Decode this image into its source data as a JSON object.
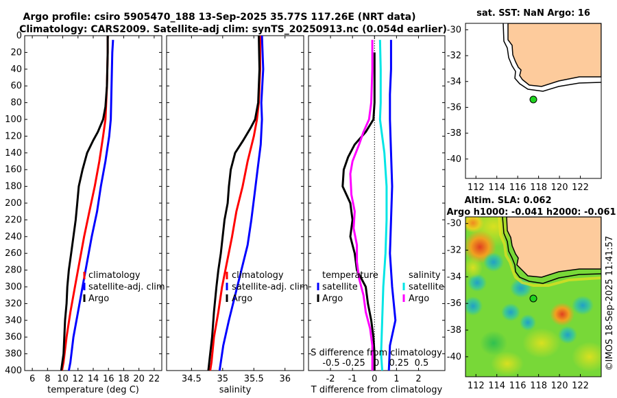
{
  "header": {
    "line1": "Argo profile: csiro 5905470_188 13-Sep-2025 35.77S 117.26E (NRT data)",
    "line2": "Climatology: CARS2009. Satellite-adj clim: synTS_20250913.nc (0.054d earlier)"
  },
  "footer": {
    "stamp": "©IMOS 18-Sep-2025 11:41:57"
  },
  "colors": {
    "argo": "#000000",
    "climatology": "#ff0000",
    "satellite": "#0000ff",
    "sal_diff": "#00e5e5",
    "temp_diff": "#ff00ff",
    "land": "#fdcb9c",
    "argo_dot": "#1fd21f"
  },
  "chart_data": [
    {
      "id": "temperature",
      "type": "line",
      "xlabel": "temperature (deg C)",
      "ylabel": "",
      "xlim": [
        5,
        23
      ],
      "ylim": [
        400,
        0
      ],
      "xticks": [
        6,
        8,
        10,
        12,
        14,
        16,
        18,
        20,
        22
      ],
      "yticks": [
        0,
        20,
        40,
        60,
        80,
        100,
        120,
        140,
        160,
        180,
        200,
        220,
        240,
        260,
        280,
        300,
        320,
        340,
        360,
        380,
        400
      ],
      "legend": [
        "climatology",
        "satellite-adj. clim",
        "Argo"
      ],
      "series": [
        {
          "name": "climatology",
          "color": "red",
          "points": [
            [
              15.9,
              0
            ],
            [
              15.9,
              20
            ],
            [
              15.8,
              60
            ],
            [
              15.6,
              100
            ],
            [
              15.3,
              120
            ],
            [
              14.8,
              150
            ],
            [
              14.2,
              180
            ],
            [
              13.5,
              210
            ],
            [
              12.8,
              240
            ],
            [
              12.2,
              270
            ],
            [
              11.6,
              300
            ],
            [
              11.0,
              330
            ],
            [
              10.5,
              360
            ],
            [
              10.1,
              390
            ],
            [
              9.9,
              400
            ]
          ]
        },
        {
          "name": "satellite-adj. clim",
          "color": "blue",
          "points": [
            [
              16.6,
              5
            ],
            [
              16.5,
              20
            ],
            [
              16.4,
              60
            ],
            [
              16.3,
              100
            ],
            [
              16.1,
              120
            ],
            [
              15.6,
              150
            ],
            [
              15.0,
              180
            ],
            [
              14.5,
              210
            ],
            [
              13.8,
              240
            ],
            [
              13.2,
              270
            ],
            [
              12.6,
              300
            ],
            [
              12.0,
              330
            ],
            [
              11.4,
              360
            ],
            [
              11.0,
              390
            ],
            [
              10.8,
              400
            ]
          ]
        },
        {
          "name": "Argo",
          "color": "black",
          "points": [
            [
              15.9,
              0
            ],
            [
              15.9,
              20
            ],
            [
              15.8,
              60
            ],
            [
              15.6,
              85
            ],
            [
              15.3,
              100
            ],
            [
              14.6,
              115
            ],
            [
              14.0,
              125
            ],
            [
              13.2,
              140
            ],
            [
              12.6,
              160
            ],
            [
              12.1,
              180
            ],
            [
              11.9,
              200
            ],
            [
              11.7,
              220
            ],
            [
              11.4,
              240
            ],
            [
              11.1,
              260
            ],
            [
              10.8,
              280
            ],
            [
              10.6,
              300
            ],
            [
              10.5,
              320
            ],
            [
              10.3,
              340
            ],
            [
              10.2,
              360
            ],
            [
              10.1,
              380
            ],
            [
              9.8,
              400
            ]
          ]
        }
      ]
    },
    {
      "id": "salinity",
      "type": "line",
      "xlabel": "salinity",
      "ylabel": "",
      "xlim": [
        34.1,
        36.3
      ],
      "ylim": [
        400,
        0
      ],
      "xticks": [
        34.5,
        35,
        35.5,
        36
      ],
      "legend": [
        "climatology",
        "satellite-adj. clim",
        "Argo"
      ],
      "series": [
        {
          "name": "climatology",
          "color": "red",
          "points": [
            [
              35.6,
              0
            ],
            [
              35.6,
              40
            ],
            [
              35.58,
              80
            ],
            [
              35.55,
              100
            ],
            [
              35.5,
              120
            ],
            [
              35.4,
              150
            ],
            [
              35.32,
              180
            ],
            [
              35.22,
              210
            ],
            [
              35.15,
              240
            ],
            [
              35.07,
              270
            ],
            [
              34.99,
              300
            ],
            [
              34.93,
              330
            ],
            [
              34.86,
              360
            ],
            [
              34.82,
              390
            ],
            [
              34.8,
              400
            ]
          ]
        },
        {
          "name": "satellite-adj. clim",
          "color": "blue",
          "points": [
            [
              35.63,
              0
            ],
            [
              35.65,
              40
            ],
            [
              35.62,
              80
            ],
            [
              35.63,
              100
            ],
            [
              35.61,
              130
            ],
            [
              35.56,
              160
            ],
            [
              35.51,
              190
            ],
            [
              35.46,
              220
            ],
            [
              35.4,
              250
            ],
            [
              35.3,
              280
            ],
            [
              35.2,
              310
            ],
            [
              35.1,
              340
            ],
            [
              35.01,
              370
            ],
            [
              34.95,
              400
            ]
          ]
        },
        {
          "name": "Argo",
          "color": "black",
          "points": [
            [
              35.58,
              0
            ],
            [
              35.59,
              40
            ],
            [
              35.57,
              80
            ],
            [
              35.52,
              100
            ],
            [
              35.45,
              110
            ],
            [
              35.33,
              125
            ],
            [
              35.2,
              140
            ],
            [
              35.13,
              160
            ],
            [
              35.1,
              180
            ],
            [
              35.08,
              200
            ],
            [
              35.03,
              220
            ],
            [
              35.0,
              240
            ],
            [
              34.97,
              260
            ],
            [
              34.93,
              280
            ],
            [
              34.9,
              300
            ],
            [
              34.86,
              330
            ],
            [
              34.83,
              360
            ],
            [
              34.8,
              380
            ],
            [
              34.77,
              400
            ]
          ]
        }
      ]
    },
    {
      "id": "difference",
      "type": "line",
      "xlabel": "T difference from climatology",
      "ylabel": "",
      "xlim": [
        -3,
        3.2
      ],
      "ylim": [
        400,
        0
      ],
      "xticks": [
        -2,
        -1,
        0,
        1,
        2
      ],
      "secondary_xlabel": "S difference from climatology",
      "secondary_xticks": [
        "-0.5",
        "-0.25",
        "0",
        "0.25",
        "0.5"
      ],
      "legend_temperature": {
        "title": "temperature",
        "entries": [
          "satellite",
          "Argo"
        ]
      },
      "legend_salinity": {
        "title": "salinity",
        "entries": [
          "satellite",
          "Argo"
        ]
      },
      "series": [
        {
          "name": "temperature satellite",
          "color": "blue",
          "points": [
            [
              0.75,
              5
            ],
            [
              0.75,
              40
            ],
            [
              0.7,
              70
            ],
            [
              0.7,
              100
            ],
            [
              0.75,
              140
            ],
            [
              0.8,
              180
            ],
            [
              0.75,
              220
            ],
            [
              0.7,
              260
            ],
            [
              0.8,
              300
            ],
            [
              0.95,
              340
            ],
            [
              0.7,
              370
            ],
            [
              0.65,
              400
            ]
          ]
        },
        {
          "name": "temperature Argo",
          "color": "black",
          "points": [
            [
              0.0,
              20
            ],
            [
              0.0,
              80
            ],
            [
              -0.05,
              100
            ],
            [
              -0.4,
              115
            ],
            [
              -0.9,
              130
            ],
            [
              -1.2,
              145
            ],
            [
              -1.4,
              160
            ],
            [
              -1.45,
              180
            ],
            [
              -1.1,
              200
            ],
            [
              -1.0,
              220
            ],
            [
              -1.1,
              240
            ],
            [
              -0.9,
              260
            ],
            [
              -0.8,
              280
            ],
            [
              -0.4,
              300
            ],
            [
              -0.3,
              320
            ],
            [
              -0.15,
              340
            ],
            [
              -0.05,
              360
            ],
            [
              0.0,
              380
            ],
            [
              0.0,
              400
            ]
          ]
        },
        {
          "name": "salinity satellite",
          "color": "cyan",
          "points": [
            [
              0.25,
              5
            ],
            [
              0.28,
              40
            ],
            [
              0.28,
              80
            ],
            [
              0.25,
              100
            ],
            [
              0.45,
              140
            ],
            [
              0.55,
              180
            ],
            [
              0.55,
              220
            ],
            [
              0.5,
              260
            ],
            [
              0.4,
              300
            ],
            [
              0.35,
              340
            ],
            [
              0.3,
              380
            ],
            [
              0.35,
              400
            ]
          ]
        },
        {
          "name": "salinity Argo",
          "color": "magenta",
          "points": [
            [
              -0.1,
              5
            ],
            [
              -0.1,
              40
            ],
            [
              -0.15,
              80
            ],
            [
              -0.25,
              100
            ],
            [
              -0.5,
              115
            ],
            [
              -0.7,
              130
            ],
            [
              -1.0,
              150
            ],
            [
              -1.1,
              165
            ],
            [
              -1.05,
              190
            ],
            [
              -0.9,
              210
            ],
            [
              -0.95,
              230
            ],
            [
              -0.8,
              250
            ],
            [
              -0.8,
              270
            ],
            [
              -0.7,
              290
            ],
            [
              -0.5,
              310
            ],
            [
              -0.4,
              330
            ],
            [
              -0.2,
              350
            ],
            [
              -0.1,
              370
            ],
            [
              -0.1,
              400
            ]
          ]
        }
      ]
    },
    {
      "id": "sst_map",
      "type": "map",
      "title": "sat. SST: NaN Argo: 16",
      "xlim": [
        111,
        124
      ],
      "ylim": [
        -41.5,
        -29.5
      ],
      "xticks": [
        112,
        114,
        116,
        118,
        120,
        122
      ],
      "yticks": [
        -30,
        -32,
        -34,
        -36,
        -38,
        -40
      ],
      "argo_position": [
        117.26,
        -35.77
      ]
    },
    {
      "id": "sla_map",
      "type": "map",
      "title_line1": "Altim. SLA: 0.062",
      "title_line2": "Argo h1000: -0.041 h2000: -0.061",
      "xlim": [
        111,
        124
      ],
      "ylim": [
        -41.5,
        -29.5
      ],
      "xticks": [
        112,
        114,
        116,
        118,
        120,
        122
      ],
      "yticks": [
        -30,
        -32,
        -34,
        -36,
        -38,
        -40
      ],
      "argo_position": [
        117.26,
        -35.77
      ]
    }
  ]
}
